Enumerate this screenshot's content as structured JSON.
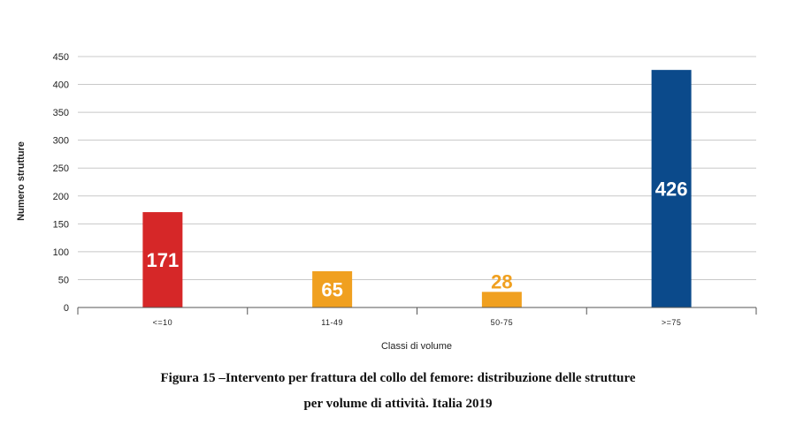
{
  "chart_data": {
    "type": "bar",
    "categories": [
      "<=10",
      "11-49",
      "50-75",
      ">=75"
    ],
    "values": [
      171,
      65,
      28,
      426
    ],
    "colors": [
      "#d62728",
      "#f0a020",
      "#f0a020",
      "#0b4a8b"
    ],
    "value_label_colors": [
      "#ffffff",
      "#ffffff",
      "#f0a020",
      "#ffffff"
    ],
    "ylabel": "Numero strutture",
    "xlabel": "Classi di volume",
    "ylim": [
      0,
      450
    ],
    "yticks": [
      0,
      50,
      100,
      150,
      200,
      250,
      300,
      350,
      400,
      450
    ],
    "grid": true
  },
  "caption": {
    "line1": "Figura 15 –Intervento per frattura del collo del femore: distribuzione delle strutture",
    "line2": "per volume di attività. Italia 2019"
  }
}
